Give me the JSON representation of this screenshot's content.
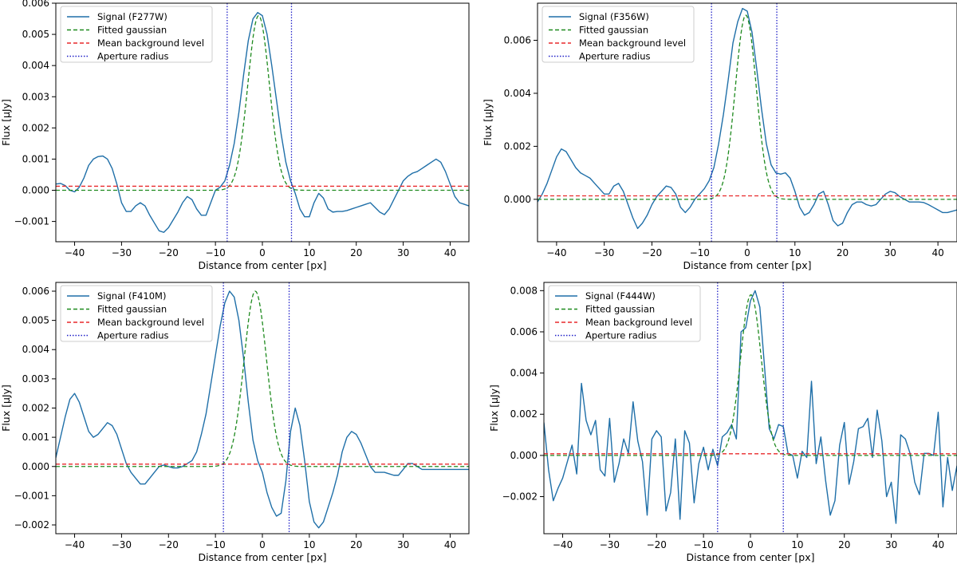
{
  "chart_data": [
    {
      "type": "line",
      "xlabel": "Distance from center [px]",
      "ylabel": "Flux [μJy]",
      "xlim": [
        -44,
        44
      ],
      "ylim": [
        -0.00165,
        0.006
      ],
      "xticks": [
        -40,
        -30,
        -20,
        -10,
        0,
        10,
        20,
        30,
        40
      ],
      "yticks": [
        -0.001,
        0.0,
        0.001,
        0.002,
        0.003,
        0.004,
        0.005,
        0.006
      ],
      "ytick_labels": [
        "−0.001",
        "0.000",
        "0.001",
        "0.002",
        "0.003",
        "0.004",
        "0.005",
        "0.006"
      ],
      "xtick_labels": [
        "−40",
        "−30",
        "−20",
        "−10",
        "0",
        "10",
        "20",
        "30",
        "40"
      ],
      "legend_position": "top-left",
      "grid": false,
      "series": [
        {
          "name": "Signal (F277W)",
          "style": "solid",
          "color": "#1f6fa8",
          "x": [
            -44,
            -43,
            -42,
            -41,
            -40,
            -39,
            -38,
            -37,
            -36,
            -35,
            -34,
            -33,
            -32,
            -31,
            -30,
            -29,
            -28,
            -27,
            -26,
            -25,
            -24,
            -23,
            -22,
            -21,
            -20,
            -19,
            -18,
            -17,
            -16,
            -15,
            -14,
            -13,
            -12,
            -11,
            -10,
            -9,
            -8,
            -7,
            -6,
            -5,
            -4,
            -3,
            -2,
            -1,
            0,
            1,
            2,
            3,
            4,
            5,
            6,
            7,
            8,
            9,
            10,
            11,
            12,
            13,
            14,
            15,
            16,
            17,
            18,
            19,
            20,
            21,
            22,
            23,
            24,
            25,
            26,
            27,
            28,
            29,
            30,
            31,
            32,
            33,
            34,
            35,
            36,
            37,
            38,
            39,
            40,
            41,
            42,
            43,
            44
          ],
          "y": [
            0.0002,
            0.00022,
            0.00015,
            0.0,
            -5e-05,
            0.0001,
            0.0004,
            0.0008,
            0.001,
            0.00108,
            0.0011,
            0.001,
            0.0007,
            0.0002,
            -0.0004,
            -0.00068,
            -0.00068,
            -0.0005,
            -0.0004,
            -0.0005,
            -0.0008,
            -0.00105,
            -0.0013,
            -0.00135,
            -0.0012,
            -0.00095,
            -0.0007,
            -0.0004,
            -0.0002,
            -0.0003,
            -0.0006,
            -0.0008,
            -0.0008,
            -0.0004,
            0.0,
            0.0001,
            0.0003,
            0.0008,
            0.0015,
            0.0025,
            0.0037,
            0.0048,
            0.0055,
            0.0057,
            0.0056,
            0.005,
            0.004,
            0.0029,
            0.0018,
            0.0009,
            0.0003,
            -0.0001,
            -0.0006,
            -0.00085,
            -0.00085,
            -0.0004,
            -0.0001,
            -0.00025,
            -0.0006,
            -0.0007,
            -0.00068,
            -0.00068,
            -0.00065,
            -0.0006,
            -0.00055,
            -0.0005,
            -0.00045,
            -0.0004,
            -0.00055,
            -0.0007,
            -0.00078,
            -0.0006,
            -0.0003,
            0.0,
            0.0003,
            0.00045,
            0.00055,
            0.0006,
            0.0007,
            0.0008,
            0.0009,
            0.001,
            0.0009,
            0.0006,
            0.0002,
            -0.0002,
            -0.0004,
            -0.00045,
            -0.0005
          ]
        },
        {
          "name": "Fitted gaussian",
          "style": "dashed",
          "color": "#1e8a1e",
          "gauss": {
            "amp": 0.0056,
            "mu": -0.8,
            "sigma": 2.3,
            "offset": 0.0
          }
        },
        {
          "name": "Mean background level",
          "style": "dashed",
          "color": "#e8282b",
          "constant": 0.00013
        },
        {
          "name": "Aperture radius",
          "style": "dotted",
          "color": "#2020c8",
          "vlines": [
            -7.5,
            6.2
          ]
        }
      ]
    },
    {
      "type": "line",
      "xlabel": "Distance from center [px]",
      "ylabel": "Flux [μJy]",
      "xlim": [
        -44,
        44
      ],
      "ylim": [
        -0.0016,
        0.0074
      ],
      "xticks": [
        -40,
        -30,
        -20,
        -10,
        0,
        10,
        20,
        30,
        40
      ],
      "yticks": [
        0.0,
        0.002,
        0.004,
        0.006
      ],
      "ytick_labels": [
        "0.000",
        "0.002",
        "0.004",
        "0.006"
      ],
      "xtick_labels": [
        "−40",
        "−30",
        "−20",
        "−10",
        "0",
        "10",
        "20",
        "30",
        "40"
      ],
      "legend_position": "top-left",
      "grid": false,
      "series": [
        {
          "name": "Signal (F356W)",
          "style": "solid",
          "color": "#1f6fa8",
          "x": [
            -44,
            -43,
            -42,
            -41,
            -40,
            -39,
            -38,
            -37,
            -36,
            -35,
            -34,
            -33,
            -32,
            -31,
            -30,
            -29,
            -28,
            -27,
            -26,
            -25,
            -24,
            -23,
            -22,
            -21,
            -20,
            -19,
            -18,
            -17,
            -16,
            -15,
            -14,
            -13,
            -12,
            -11,
            -10,
            -9,
            -8,
            -7,
            -6,
            -5,
            -4,
            -3,
            -2,
            -1,
            0,
            1,
            2,
            3,
            4,
            5,
            6,
            7,
            8,
            9,
            10,
            11,
            12,
            13,
            14,
            15,
            16,
            17,
            18,
            19,
            20,
            21,
            22,
            23,
            24,
            25,
            26,
            27,
            28,
            29,
            30,
            31,
            32,
            33,
            34,
            35,
            36,
            37,
            38,
            39,
            40,
            41,
            42,
            43,
            44
          ],
          "y": [
            -0.0001,
            0.0002,
            0.0006,
            0.0011,
            0.0016,
            0.0019,
            0.0018,
            0.0015,
            0.0012,
            0.001,
            0.0009,
            0.0008,
            0.0006,
            0.0004,
            0.0002,
            0.0002,
            0.0005,
            0.0006,
            0.0003,
            -0.0002,
            -0.0007,
            -0.0011,
            -0.0009,
            -0.0006,
            -0.0002,
            0.0001,
            0.0003,
            0.0005,
            0.00045,
            0.0002,
            -0.0003,
            -0.0005,
            -0.0003,
            0.0,
            0.0002,
            0.0004,
            0.0007,
            0.0012,
            0.0021,
            0.0032,
            0.0045,
            0.0059,
            0.0067,
            0.0072,
            0.0071,
            0.0063,
            0.0049,
            0.0034,
            0.0021,
            0.0013,
            0.001,
            0.00095,
            0.001,
            0.0008,
            0.0003,
            -0.0003,
            -0.0006,
            -0.0005,
            -0.0002,
            0.0002,
            0.0003,
            -0.0002,
            -0.0008,
            -0.001,
            -0.0009,
            -0.0005,
            -0.0002,
            -0.0001,
            -0.0001,
            -0.0002,
            -0.00025,
            -0.0002,
            0.0,
            0.0002,
            0.0003,
            0.00025,
            0.0001,
            0.0,
            -0.0001,
            -0.0001,
            -0.0001,
            -0.00012,
            -0.0002,
            -0.0003,
            -0.0004,
            -0.0005,
            -0.0005,
            -0.00045,
            -0.0004
          ]
        },
        {
          "name": "Fitted gaussian",
          "style": "dashed",
          "color": "#1e8a1e",
          "gauss": {
            "amp": 0.00695,
            "mu": -0.3,
            "sigma": 2.2,
            "offset": 0.0
          }
        },
        {
          "name": "Mean background level",
          "style": "dashed",
          "color": "#e8282b",
          "constant": 0.00013
        },
        {
          "name": "Aperture radius",
          "style": "dotted",
          "color": "#2020c8",
          "vlines": [
            -7.5,
            6.2
          ]
        }
      ]
    },
    {
      "type": "line",
      "xlabel": "Distance from center [px]",
      "ylabel": "Flux [μJy]",
      "xlim": [
        -44,
        44
      ],
      "ylim": [
        -0.0023,
        0.0063
      ],
      "xticks": [
        -40,
        -30,
        -20,
        -10,
        0,
        10,
        20,
        30,
        40
      ],
      "yticks": [
        -0.002,
        -0.001,
        0.0,
        0.001,
        0.002,
        0.003,
        0.004,
        0.005,
        0.006
      ],
      "ytick_labels": [
        "−0.002",
        "−0.001",
        "0.000",
        "0.001",
        "0.002",
        "0.003",
        "0.004",
        "0.005",
        "0.006"
      ],
      "xtick_labels": [
        "−40",
        "−30",
        "−20",
        "−10",
        "0",
        "10",
        "20",
        "30",
        "40"
      ],
      "legend_position": "top-left",
      "grid": false,
      "series": [
        {
          "name": "Signal (F410M)",
          "style": "solid",
          "color": "#1f6fa8",
          "x": [
            -44,
            -43,
            -42,
            -41,
            -40,
            -39,
            -38,
            -37,
            -36,
            -35,
            -34,
            -33,
            -32,
            -31,
            -30,
            -29,
            -28,
            -27,
            -26,
            -25,
            -24,
            -23,
            -22,
            -21,
            -20,
            -19,
            -18,
            -17,
            -16,
            -15,
            -14,
            -13,
            -12,
            -11,
            -10,
            -9,
            -8,
            -7,
            -6,
            -5,
            -4,
            -3,
            -2,
            -1,
            0,
            1,
            2,
            3,
            4,
            5,
            6,
            7,
            8,
            9,
            10,
            11,
            12,
            13,
            14,
            15,
            16,
            17,
            18,
            19,
            20,
            21,
            22,
            23,
            24,
            25,
            26,
            27,
            28,
            29,
            30,
            31,
            32,
            33,
            34,
            35,
            36,
            37,
            38,
            39,
            40,
            41,
            42,
            43,
            44
          ],
          "y": [
            0.0003,
            0.001,
            0.0017,
            0.0023,
            0.0025,
            0.0022,
            0.0017,
            0.0012,
            0.001,
            0.0011,
            0.0013,
            0.0015,
            0.0014,
            0.0011,
            0.0006,
            0.0001,
            -0.0002,
            -0.0004,
            -0.0006,
            -0.0006,
            -0.0004,
            -0.0002,
            0.0,
            5e-05,
            0.0,
            -5e-05,
            -5e-05,
            0.0,
            0.0001,
            0.0002,
            0.0005,
            0.0011,
            0.0018,
            0.0028,
            0.0038,
            0.0048,
            0.0056,
            0.006,
            0.0058,
            0.005,
            0.0037,
            0.0022,
            0.0009,
            0.0002,
            -0.0002,
            -0.0009,
            -0.0014,
            -0.0017,
            -0.0016,
            -0.0005,
            0.0012,
            0.002,
            0.0014,
            0.0002,
            -0.0012,
            -0.0019,
            -0.0021,
            -0.0019,
            -0.0014,
            -0.0009,
            -0.0003,
            0.0005,
            0.001,
            0.0012,
            0.0011,
            0.0008,
            0.0004,
            0.0,
            -0.0002,
            -0.0002,
            -0.0002,
            -0.00025,
            -0.0003,
            -0.0003,
            -0.0001,
            0.0001,
            0.0001,
            0.0,
            -0.0001,
            -0.0001,
            -0.0001,
            -0.0001,
            -0.0001,
            -0.0001,
            -0.0001,
            -0.0001,
            -0.0001,
            -0.0001,
            -0.0001
          ]
        },
        {
          "name": "Fitted gaussian",
          "style": "dashed",
          "color": "#1e8a1e",
          "gauss": {
            "amp": 0.006,
            "mu": -1.5,
            "sigma": 2.4,
            "offset": 0.0
          }
        },
        {
          "name": "Mean background level",
          "style": "dashed",
          "color": "#e8282b",
          "constant": 8e-05
        },
        {
          "name": "Aperture radius",
          "style": "dotted",
          "color": "#2020c8",
          "vlines": [
            -8.3,
            5.7
          ]
        }
      ]
    },
    {
      "type": "line",
      "xlabel": "Distance from center [px]",
      "ylabel": "Flux [μJy]",
      "xlim": [
        -44,
        44
      ],
      "ylim": [
        -0.0038,
        0.0084
      ],
      "xticks": [
        -40,
        -30,
        -20,
        -10,
        0,
        10,
        20,
        30,
        40
      ],
      "yticks": [
        -0.002,
        0.0,
        0.002,
        0.004,
        0.006,
        0.008
      ],
      "ytick_labels": [
        "−0.002",
        "0.000",
        "0.002",
        "0.004",
        "0.006",
        "0.008"
      ],
      "xtick_labels": [
        "−40",
        "−30",
        "−20",
        "−10",
        "0",
        "10",
        "20",
        "30",
        "40"
      ],
      "legend_position": "top-left",
      "grid": false,
      "series": [
        {
          "name": "Signal (F444W)",
          "style": "solid",
          "color": "#1f6fa8",
          "x": [
            -44,
            -43,
            -42,
            -41,
            -40,
            -39,
            -38,
            -37,
            -36,
            -35,
            -34,
            -33,
            -32,
            -31,
            -30,
            -29,
            -28,
            -27,
            -26,
            -25,
            -24,
            -23,
            -22,
            -21,
            -20,
            -19,
            -18,
            -17,
            -16,
            -15,
            -14,
            -13,
            -12,
            -11,
            -10,
            -9,
            -8,
            -7,
            -6,
            -5,
            -4,
            -3,
            -2,
            -1,
            0,
            1,
            2,
            3,
            4,
            5,
            6,
            7,
            8,
            9,
            10,
            11,
            12,
            13,
            14,
            15,
            16,
            17,
            18,
            19,
            20,
            21,
            22,
            23,
            24,
            25,
            26,
            27,
            28,
            29,
            30,
            31,
            32,
            33,
            34,
            35,
            36,
            37,
            38,
            39,
            40,
            41,
            42,
            43,
            44
          ],
          "y": [
            0.0016,
            -0.0007,
            -0.0022,
            -0.0016,
            -0.0011,
            -0.0003,
            0.0005,
            -0.0009,
            0.0035,
            0.0017,
            0.001,
            0.0017,
            -0.0007,
            -0.001,
            0.0018,
            -0.0013,
            -0.0004,
            0.0008,
            0.0001,
            0.0026,
            0.0007,
            -0.0003,
            -0.0029,
            0.0008,
            0.0012,
            0.0009,
            -0.0027,
            -0.0018,
            0.0008,
            -0.0031,
            0.0012,
            0.0006,
            -0.0023,
            -0.0004,
            0.0004,
            -0.0007,
            0.0003,
            -0.0005,
            0.0009,
            0.0011,
            0.0015,
            0.0008,
            0.006,
            0.0062,
            0.0075,
            0.008,
            0.0072,
            0.0043,
            0.0013,
            0.0008,
            0.0015,
            0.0014,
            0.0001,
            0.0,
            -0.0011,
            0.0002,
            -0.0001,
            0.0036,
            -0.0004,
            0.0009,
            -0.0012,
            -0.0029,
            -0.0022,
            0.0005,
            0.0016,
            -0.0014,
            -0.0003,
            0.0013,
            0.0014,
            0.0018,
            -0.0001,
            0.0022,
            0.0007,
            -0.002,
            -0.0013,
            -0.0033,
            0.001,
            0.0008,
            0.0001,
            -0.0013,
            -0.0019,
            0.0001,
            0.0001,
            0.0,
            0.0021,
            -0.0025,
            -0.0001,
            -0.0017,
            -0.0005
          ]
        },
        {
          "name": "Fitted gaussian",
          "style": "dashed",
          "color": "#1e8a1e",
          "gauss": {
            "amp": 0.0078,
            "mu": 0.1,
            "sigma": 2.2,
            "offset": 0.0
          }
        },
        {
          "name": "Mean background level",
          "style": "dashed",
          "color": "#e8282b",
          "constant": 8e-05
        },
        {
          "name": "Aperture radius",
          "style": "dotted",
          "color": "#2020c8",
          "vlines": [
            -7.0,
            7.0
          ]
        }
      ]
    }
  ]
}
